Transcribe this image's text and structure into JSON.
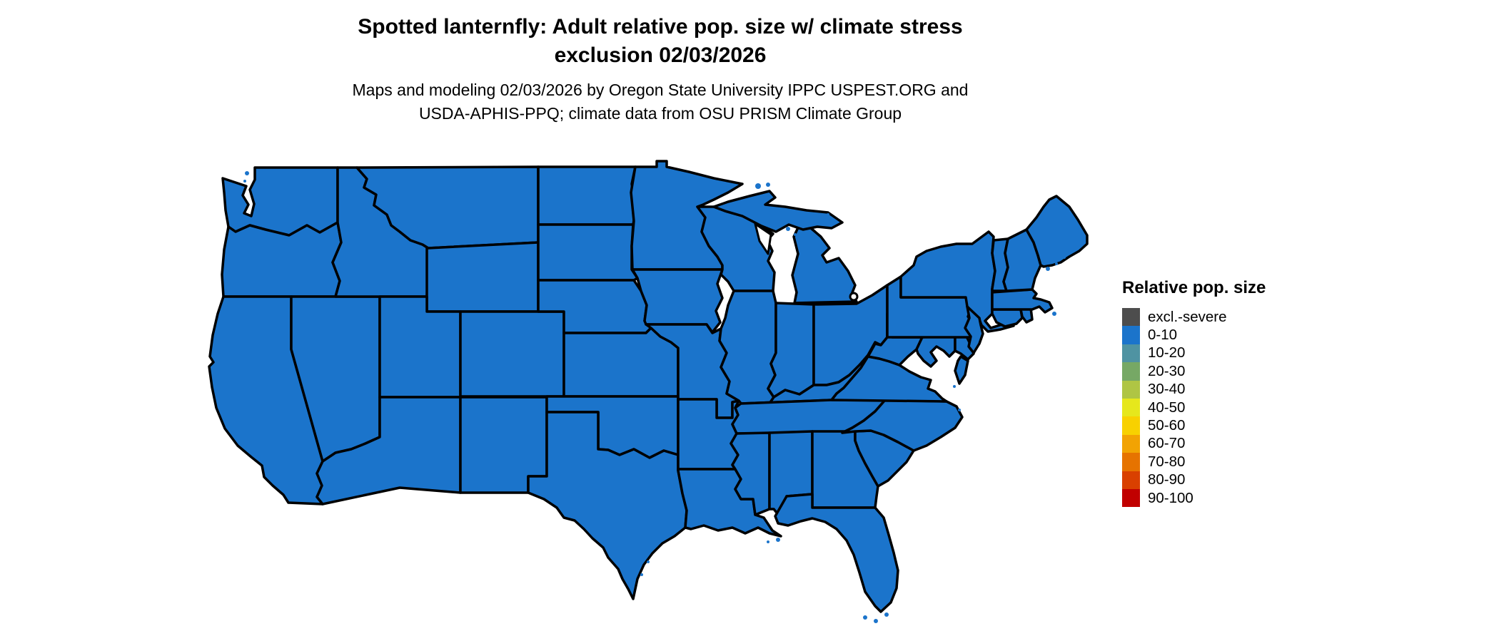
{
  "figure": {
    "title_line1": "Spotted lanternfly: Adult relative pop. size w/ climate stress",
    "title_line2": "exclusion 02/03/2026",
    "subtitle_line1": "Maps and modeling 02/03/2026 by Oregon State University IPPC USPEST.ORG and",
    "subtitle_line2": "USDA-APHIS-PPQ; climate data from OSU PRISM Climate Group"
  },
  "legend": {
    "title": "Relative pop. size",
    "items": [
      {
        "label": "excl.-severe",
        "color": "#4d4d4d"
      },
      {
        "label": "0-10",
        "color": "#1b74cb"
      },
      {
        "label": "10-20",
        "color": "#4f93a2"
      },
      {
        "label": "20-30",
        "color": "#76a865"
      },
      {
        "label": "30-40",
        "color": "#afc544"
      },
      {
        "label": "40-50",
        "color": "#e6e71c"
      },
      {
        "label": "50-60",
        "color": "#f8d100"
      },
      {
        "label": "60-70",
        "color": "#f2a303"
      },
      {
        "label": "70-80",
        "color": "#e67300"
      },
      {
        "label": "80-90",
        "color": "#d94000"
      },
      {
        "label": "90-100",
        "color": "#c10000"
      }
    ]
  },
  "chart_data": {
    "type": "heatmap",
    "subtype": "choropleth_map",
    "region": "Contiguous United States",
    "title": "Spotted lanternfly: Adult relative pop. size w/ climate stress exclusion 02/03/2026",
    "legend_title": "Relative pop. size",
    "legend_position": "right",
    "bins": [
      "excl.-severe",
      "0-10",
      "10-20",
      "20-30",
      "30-40",
      "40-50",
      "50-60",
      "60-70",
      "70-80",
      "80-90",
      "90-100"
    ],
    "bin_colors": [
      "#4d4d4d",
      "#1b74cb",
      "#4f93a2",
      "#76a865",
      "#afc544",
      "#e6e71c",
      "#f8d100",
      "#f2a303",
      "#e67300",
      "#d94000",
      "#c10000"
    ],
    "states": [
      {
        "id": "WA",
        "name": "Washington",
        "bin": "0-10"
      },
      {
        "id": "OR",
        "name": "Oregon",
        "bin": "0-10"
      },
      {
        "id": "CA",
        "name": "California",
        "bin": "0-10"
      },
      {
        "id": "NV",
        "name": "Nevada",
        "bin": "0-10"
      },
      {
        "id": "ID",
        "name": "Idaho",
        "bin": "0-10"
      },
      {
        "id": "MT",
        "name": "Montana",
        "bin": "0-10"
      },
      {
        "id": "WY",
        "name": "Wyoming",
        "bin": "0-10"
      },
      {
        "id": "UT",
        "name": "Utah",
        "bin": "0-10"
      },
      {
        "id": "CO",
        "name": "Colorado",
        "bin": "0-10"
      },
      {
        "id": "AZ",
        "name": "Arizona",
        "bin": "0-10"
      },
      {
        "id": "NM",
        "name": "New Mexico",
        "bin": "0-10"
      },
      {
        "id": "ND",
        "name": "North Dakota",
        "bin": "0-10"
      },
      {
        "id": "SD",
        "name": "South Dakota",
        "bin": "0-10"
      },
      {
        "id": "NE",
        "name": "Nebraska",
        "bin": "0-10"
      },
      {
        "id": "KS",
        "name": "Kansas",
        "bin": "0-10"
      },
      {
        "id": "OK",
        "name": "Oklahoma",
        "bin": "0-10"
      },
      {
        "id": "TX",
        "name": "Texas",
        "bin": "0-10"
      },
      {
        "id": "MN",
        "name": "Minnesota",
        "bin": "0-10"
      },
      {
        "id": "IA",
        "name": "Iowa",
        "bin": "0-10"
      },
      {
        "id": "MO",
        "name": "Missouri",
        "bin": "0-10"
      },
      {
        "id": "AR",
        "name": "Arkansas",
        "bin": "0-10"
      },
      {
        "id": "LA",
        "name": "Louisiana",
        "bin": "0-10"
      },
      {
        "id": "WI",
        "name": "Wisconsin",
        "bin": "0-10"
      },
      {
        "id": "IL",
        "name": "Illinois",
        "bin": "0-10"
      },
      {
        "id": "MS",
        "name": "Mississippi",
        "bin": "0-10"
      },
      {
        "id": "AL",
        "name": "Alabama",
        "bin": "0-10"
      },
      {
        "id": "TN",
        "name": "Tennessee",
        "bin": "0-10"
      },
      {
        "id": "KY",
        "name": "Kentucky",
        "bin": "0-10"
      },
      {
        "id": "IN",
        "name": "Indiana",
        "bin": "0-10"
      },
      {
        "id": "OH",
        "name": "Ohio",
        "bin": "0-10"
      },
      {
        "id": "MI",
        "name": "Michigan",
        "bin": "0-10"
      },
      {
        "id": "GA",
        "name": "Georgia",
        "bin": "0-10"
      },
      {
        "id": "FL",
        "name": "Florida",
        "bin": "0-10"
      },
      {
        "id": "SC",
        "name": "South Carolina",
        "bin": "0-10"
      },
      {
        "id": "NC",
        "name": "North Carolina",
        "bin": "0-10"
      },
      {
        "id": "VA",
        "name": "Virginia",
        "bin": "0-10"
      },
      {
        "id": "WV",
        "name": "West Virginia",
        "bin": "0-10"
      },
      {
        "id": "MD",
        "name": "Maryland",
        "bin": "0-10"
      },
      {
        "id": "DE",
        "name": "Delaware",
        "bin": "0-10"
      },
      {
        "id": "PA",
        "name": "Pennsylvania",
        "bin": "0-10"
      },
      {
        "id": "NJ",
        "name": "New Jersey",
        "bin": "0-10"
      },
      {
        "id": "NY",
        "name": "New York",
        "bin": "0-10"
      },
      {
        "id": "CT",
        "name": "Connecticut",
        "bin": "0-10"
      },
      {
        "id": "RI",
        "name": "Rhode Island",
        "bin": "0-10"
      },
      {
        "id": "MA",
        "name": "Massachusetts",
        "bin": "0-10"
      },
      {
        "id": "VT",
        "name": "Vermont",
        "bin": "0-10"
      },
      {
        "id": "NH",
        "name": "New Hampshire",
        "bin": "0-10"
      },
      {
        "id": "ME",
        "name": "Maine",
        "bin": "0-10"
      }
    ]
  }
}
